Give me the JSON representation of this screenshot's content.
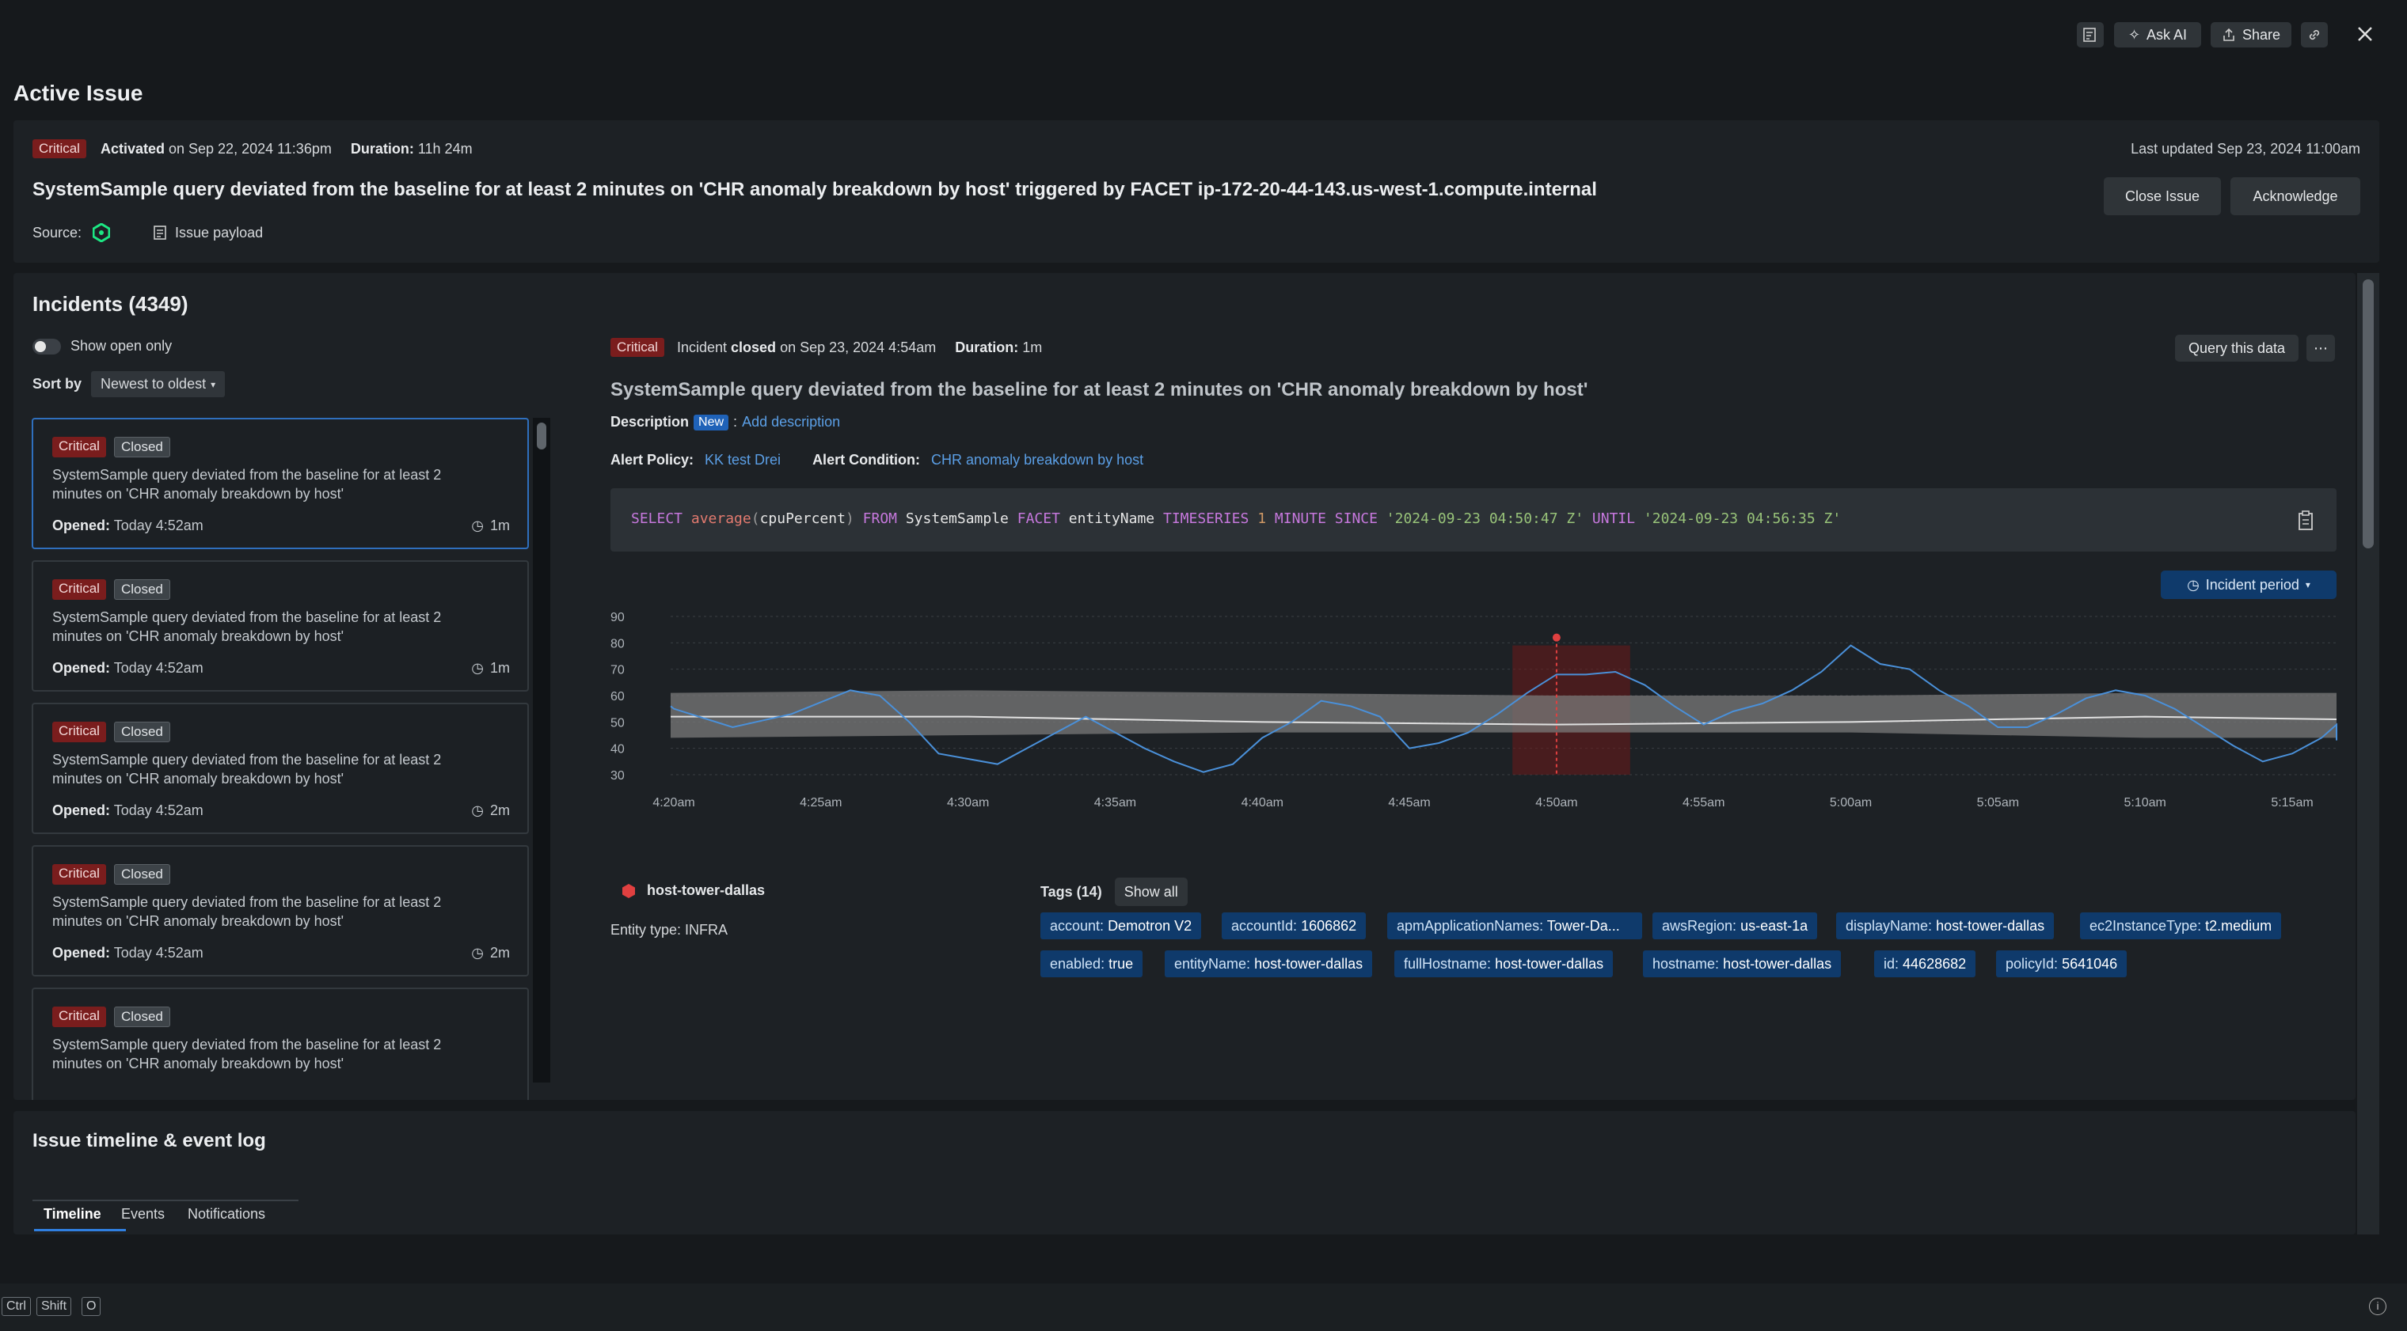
{
  "toolbar": {
    "ask_ai_label": "Ask AI",
    "share_label": "Share"
  },
  "page_title": "Active Issue",
  "issue": {
    "severity": "Critical",
    "activated_label": "Activated",
    "activated_value": "on Sep 22, 2024 11:36pm",
    "duration_label": "Duration:",
    "duration_value": "11h 24m",
    "last_updated": "Last updated Sep 23, 2024 11:00am",
    "title": "SystemSample query deviated from the baseline for at least 2 minutes on 'CHR anomaly breakdown by host' triggered by FACET ip-172-20-44-143.us-west-1.compute.internal",
    "close_issue_label": "Close Issue",
    "acknowledge_label": "Acknowledge",
    "source_label": "Source:",
    "payload_label": "Issue payload"
  },
  "incidents": {
    "title": "Incidents (4349)",
    "show_open_only": "Show open only",
    "sort_label": "Sort by",
    "sort_value": "Newest to oldest",
    "items": [
      {
        "severity": "Critical",
        "status": "Closed",
        "desc": "SystemSample query deviated from the baseline for at least 2 minutes on 'CHR anomaly breakdown by host'",
        "opened_label": "Opened:",
        "opened": "Today 4:52am",
        "duration": "1m"
      },
      {
        "severity": "Critical",
        "status": "Closed",
        "desc": "SystemSample query deviated from the baseline for at least 2 minutes on 'CHR anomaly breakdown by host'",
        "opened_label": "Opened:",
        "opened": "Today 4:52am",
        "duration": "1m"
      },
      {
        "severity": "Critical",
        "status": "Closed",
        "desc": "SystemSample query deviated from the baseline for at least 2 minutes on 'CHR anomaly breakdown by host'",
        "opened_label": "Opened:",
        "opened": "Today 4:52am",
        "duration": "2m"
      },
      {
        "severity": "Critical",
        "status": "Closed",
        "desc": "SystemSample query deviated from the baseline for at least 2 minutes on 'CHR anomaly breakdown by host'",
        "opened_label": "Opened:",
        "opened": "Today 4:52am",
        "duration": "2m"
      },
      {
        "severity": "Critical",
        "status": "Closed",
        "desc": "SystemSample query deviated from the baseline for at least 2 minutes on 'CHR anomaly breakdown by host'",
        "opened_label": "",
        "opened": "",
        "duration": ""
      }
    ]
  },
  "detail": {
    "severity": "Critical",
    "incident_label": "Incident",
    "closed_label": "closed",
    "closed_value": "on Sep 23, 2024 4:54am",
    "duration_label": "Duration:",
    "duration_value": "1m",
    "query_button": "Query this data",
    "title": "SystemSample query deviated from the baseline for at least 2 minutes on 'CHR anomaly breakdown by host'",
    "description_label": "Description",
    "new_badge": "New",
    "add_description": "Add description",
    "policy_label": "Alert Policy:",
    "policy_value": "KK test Drei",
    "condition_label": "Alert Condition:",
    "condition_value": "CHR anomaly breakdown by host",
    "nrql": {
      "kw_select": "SELECT",
      "fn": "average",
      "arg": "cpuPercent",
      "kw_from": "FROM",
      "table": "SystemSample",
      "kw_facet": "FACET",
      "facet": "entityName",
      "kw_timeseries": "TIMESERIES",
      "num": "1",
      "kw_minute": "MINUTE",
      "kw_since": "SINCE",
      "since": "'2024-09-23 04:50:47 Z'",
      "kw_until": "UNTIL",
      "until": "'2024-09-23 04:56:35 Z'"
    },
    "period_button": "Incident period",
    "entity_name": "host-tower-dallas",
    "entity_type": "Entity type: INFRA",
    "tags_title": "Tags (14)",
    "show_all": "Show all",
    "tags": [
      {
        "k": "account:",
        "v": "Demotron V2"
      },
      {
        "k": "accountId:",
        "v": "1606862"
      },
      {
        "k": "apmApplicationNames:",
        "v": "Tower-Da..."
      },
      {
        "k": "awsRegion:",
        "v": "us-east-1a"
      },
      {
        "k": "displayName:",
        "v": "host-tower-dallas"
      },
      {
        "k": "ec2InstanceType:",
        "v": "t2.medium"
      },
      {
        "k": "enabled:",
        "v": "true"
      },
      {
        "k": "entityName:",
        "v": "host-tower-dallas"
      },
      {
        "k": "fullHostname:",
        "v": "host-tower-dallas"
      },
      {
        "k": "hostname:",
        "v": "host-tower-dallas"
      },
      {
        "k": "id:",
        "v": "44628682"
      },
      {
        "k": "policyId:",
        "v": "5641046"
      }
    ]
  },
  "chart_data": {
    "type": "line",
    "y_ticks": [
      "90",
      "80",
      "70",
      "60",
      "50",
      "40",
      "30"
    ],
    "ylim": [
      30,
      90
    ],
    "x_ticks": [
      "4:20am",
      "4:25am",
      "4:30am",
      "4:35am",
      "4:40am",
      "4:45am",
      "4:50am",
      "4:55am",
      "5:00am",
      "5:05am",
      "5:10am",
      "5:15am"
    ],
    "x_minutes": [
      0,
      60
    ],
    "x_tick_minutes": [
      0,
      5,
      10,
      15,
      20,
      25,
      30,
      35,
      40,
      45,
      50,
      55
    ],
    "grid": true,
    "incident_window_minutes": [
      28.5,
      32.5
    ],
    "incident_marker_minute": 30,
    "series": [
      {
        "type": "line",
        "color": "#4a90d9",
        "x": [
          -1,
          0,
          2,
          4,
          6,
          7,
          8,
          9,
          10,
          11,
          12,
          14,
          16,
          17,
          18,
          19,
          20,
          21,
          22,
          23,
          24,
          25,
          26,
          27,
          28,
          29,
          30,
          31,
          32,
          33,
          34,
          35,
          36,
          37,
          38,
          39,
          40,
          41,
          42,
          43,
          44,
          45,
          46,
          47,
          48,
          49,
          50,
          51,
          52,
          53,
          54,
          55,
          56,
          57,
          58,
          59
        ],
        "y": [
          56,
          55,
          48,
          53,
          62,
          60,
          50,
          38,
          36,
          34,
          40,
          52,
          40,
          35,
          31,
          34,
          44,
          50,
          58,
          56,
          52,
          40,
          42,
          46,
          53,
          61,
          68,
          68,
          69,
          64,
          56,
          49,
          54,
          57,
          62,
          69,
          79,
          72,
          70,
          62,
          56,
          48,
          48,
          53,
          59,
          62,
          60,
          55,
          48,
          41,
          35,
          38,
          44,
          49,
          46,
          43
        ]
      }
    ],
    "baseline": {
      "color": "#e0e0e0",
      "x": [
        -1,
        10,
        20,
        30,
        40,
        50,
        59
      ],
      "y": [
        52,
        52,
        50,
        49,
        50,
        52,
        51
      ]
    },
    "band": {
      "color": "#7a7a7a",
      "x": [
        -1,
        10,
        20,
        30,
        40,
        50,
        59
      ],
      "upper": [
        61,
        62,
        61,
        60,
        60,
        61,
        61
      ],
      "lower": [
        44,
        45,
        46,
        46,
        46,
        44,
        44
      ]
    }
  },
  "timeline": {
    "title": "Issue timeline & event log",
    "tabs": [
      "Timeline",
      "Events",
      "Notifications"
    ]
  },
  "footer": {
    "keys": [
      "Ctrl",
      "Shift",
      "O"
    ]
  }
}
